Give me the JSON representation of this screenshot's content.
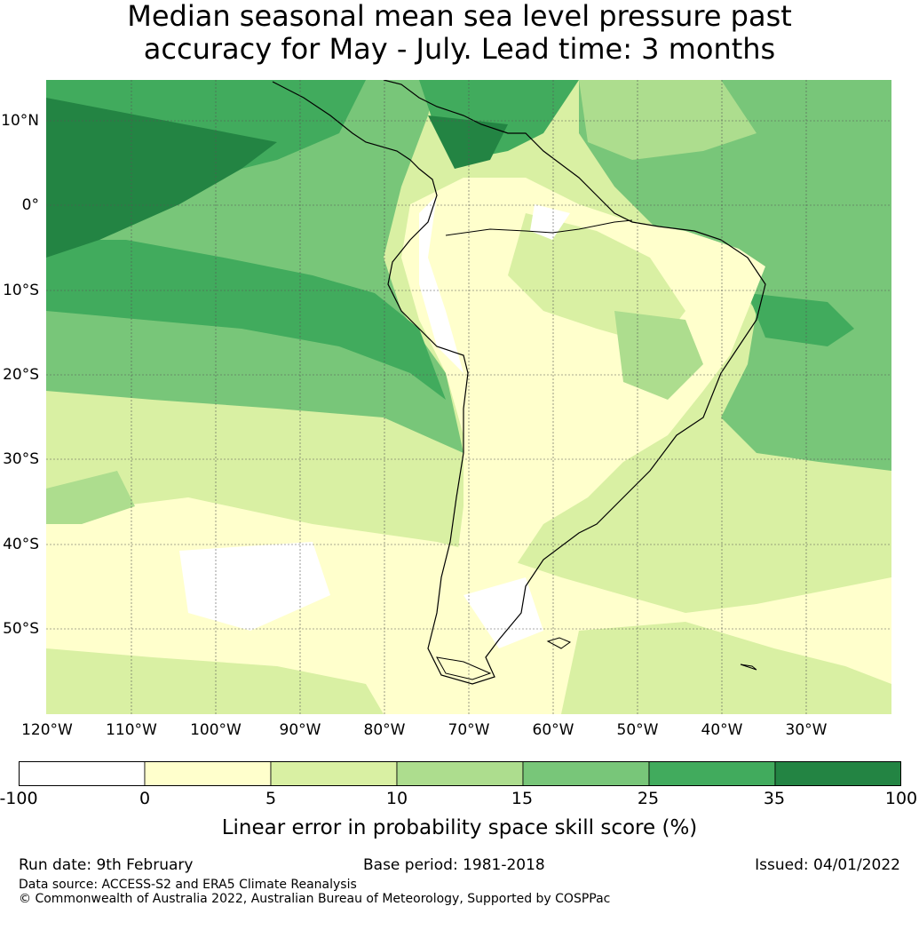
{
  "title": {
    "line1": "Median seasonal mean sea level pressure past",
    "line2": "accuracy for May - July. Lead time: 3 months"
  },
  "map": {
    "lat_labels": [
      "10°N",
      "0°",
      "10°S",
      "20°S",
      "30°S",
      "40°S",
      "50°S"
    ],
    "lon_labels": [
      "120°W",
      "110°W",
      "100°W",
      "90°W",
      "80°W",
      "70°W",
      "60°W",
      "50°W",
      "40°W",
      "30°W"
    ]
  },
  "colorbar": {
    "ticks": [
      "-100",
      "0",
      "5",
      "10",
      "15",
      "25",
      "35",
      "100"
    ],
    "colors": [
      "#ffffff",
      "#ffffcc",
      "#d9f0a3",
      "#addd8e",
      "#78c679",
      "#41ab5d",
      "#238443"
    ],
    "label": "Linear error in probability space skill score (%)"
  },
  "footer": {
    "run_date": "Run date: 9th February",
    "base_period": "Base period: 1981-2018",
    "issued": "Issued: 04/01/2022",
    "data_source": "Data source: ACCESS-S2 and ERA5 Climate Reanalysis",
    "copyright": "© Commonwealth of Australia 2022, Australian Bureau of Meteorology, Supported by COSPPac"
  }
}
